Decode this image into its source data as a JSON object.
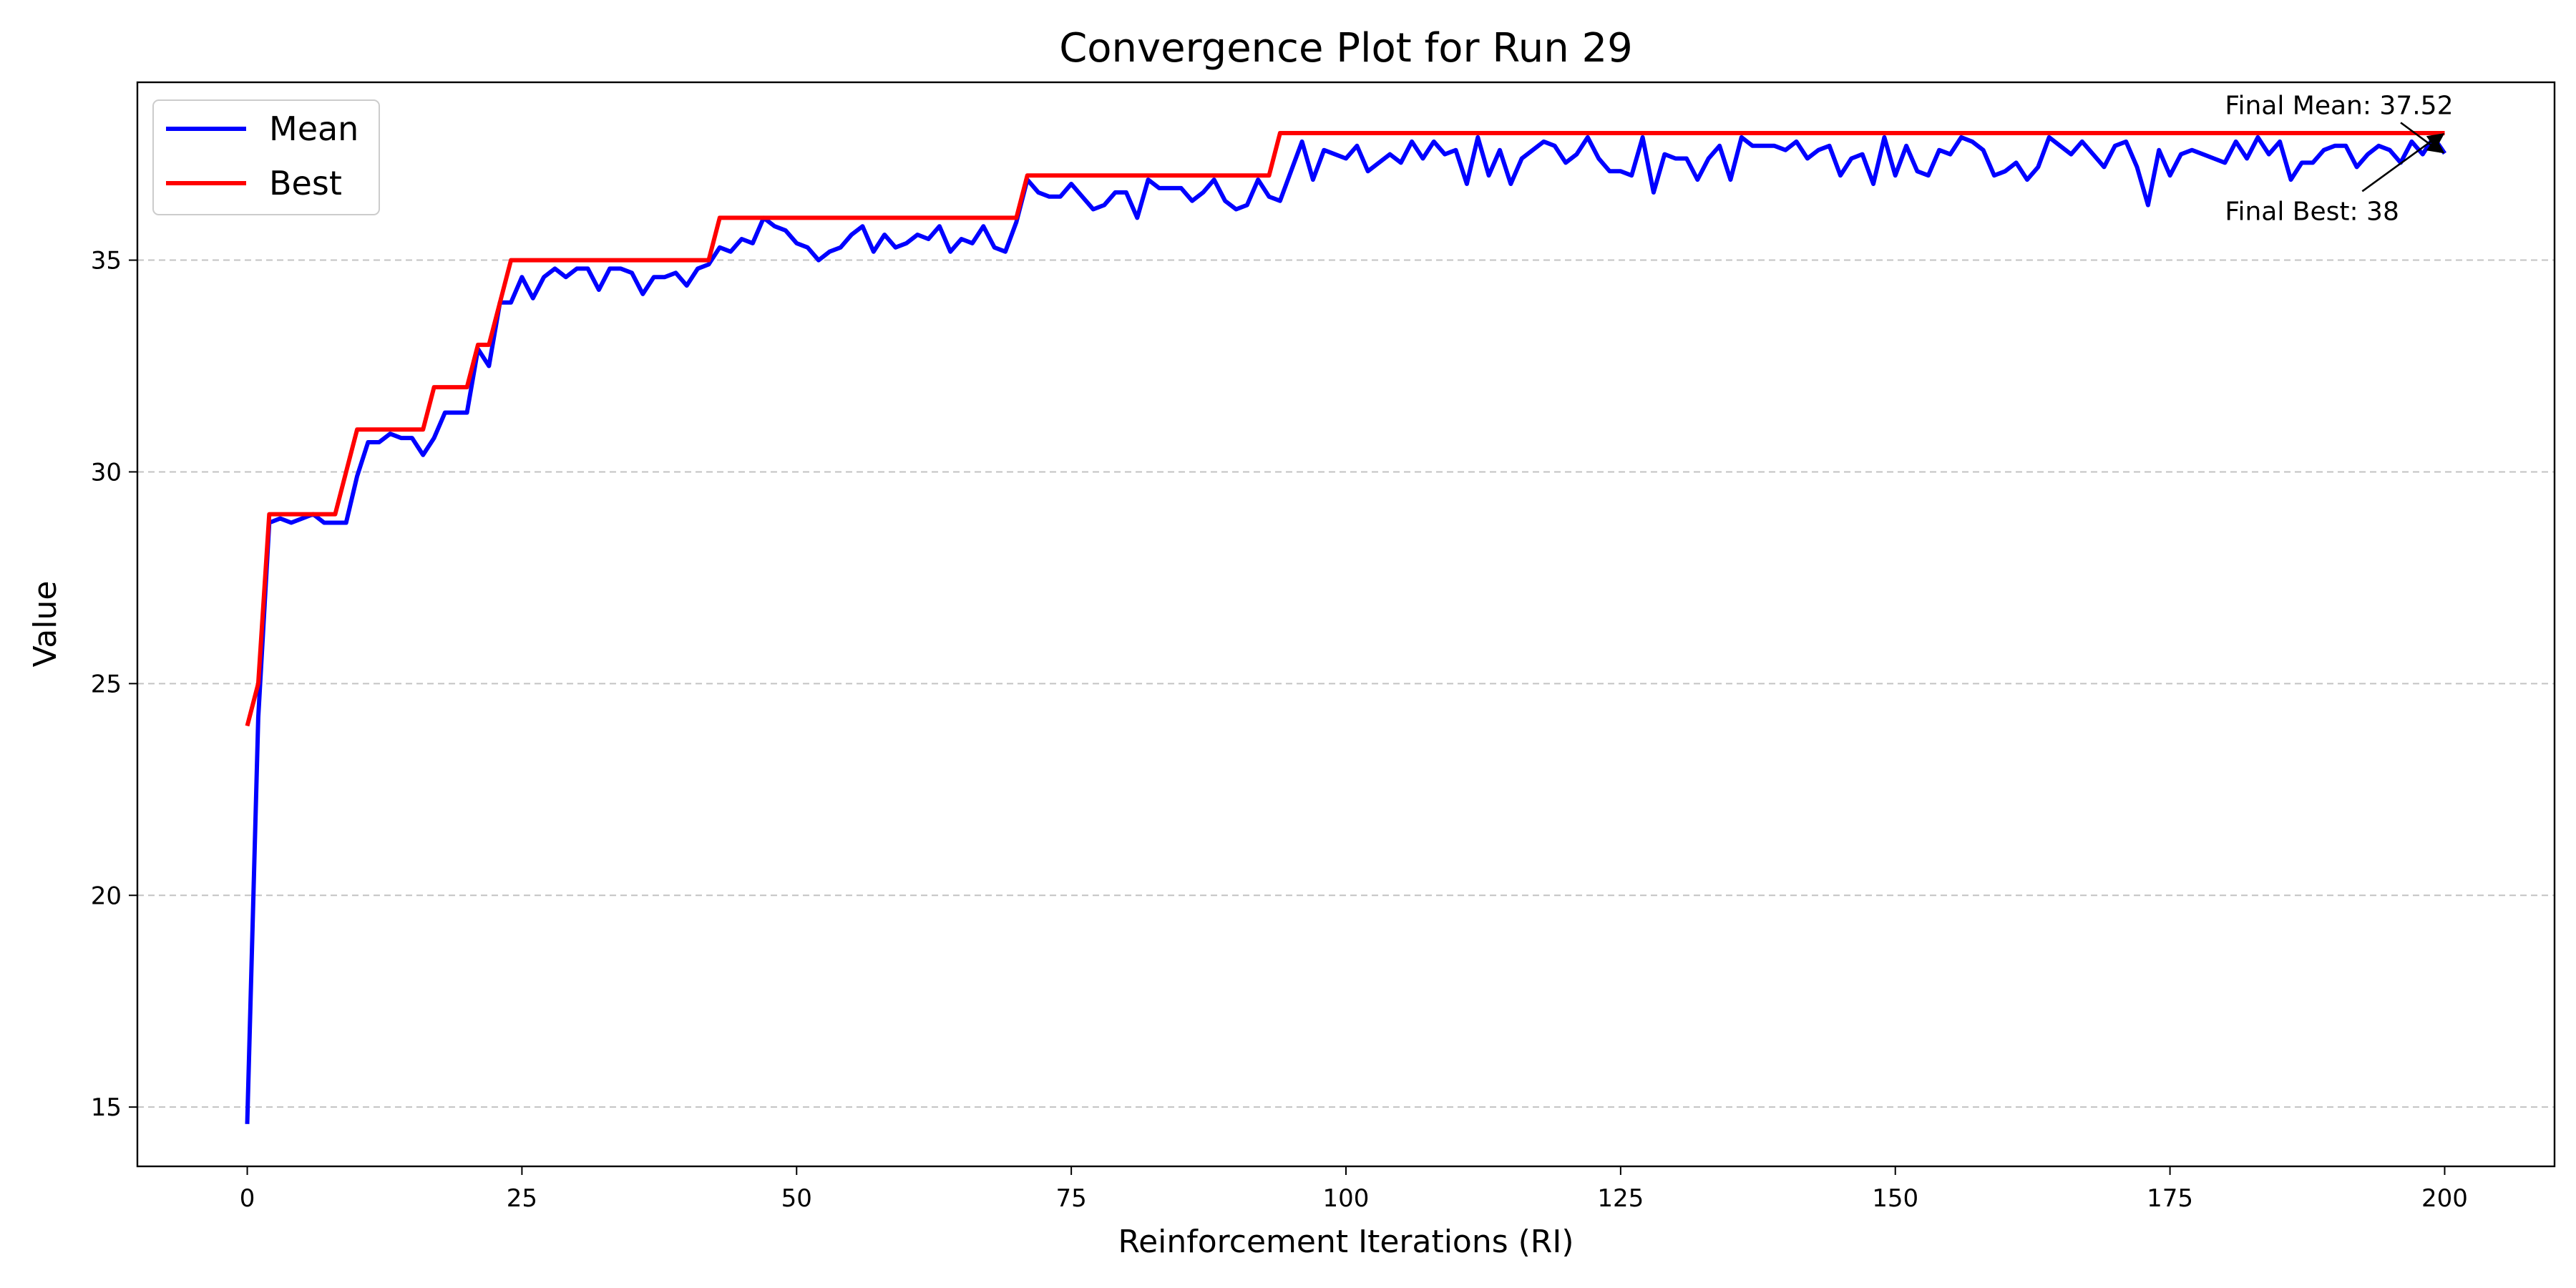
{
  "chart_data": {
    "type": "line",
    "title": "Convergence Plot for Run 29",
    "xlabel": "Reinforcement Iterations (RI)",
    "ylabel": "Value",
    "xlim": [
      -10,
      210
    ],
    "ylim": [
      13.6,
      39.2
    ],
    "x_ticks": [
      0,
      25,
      50,
      75,
      100,
      125,
      150,
      175,
      200
    ],
    "y_ticks": [
      15,
      20,
      25,
      30,
      35
    ],
    "grid": "y-dashed",
    "legend_position": "top-left",
    "series": [
      {
        "name": "Mean",
        "color": "#0000ff",
        "x": [
          0,
          1,
          2,
          3,
          4,
          5,
          6,
          7,
          8,
          9,
          10,
          11,
          12,
          13,
          14,
          15,
          16,
          17,
          18,
          19,
          20,
          21,
          22,
          23,
          24,
          25,
          26,
          27,
          28,
          29,
          30,
          31,
          32,
          33,
          34,
          35,
          36,
          37,
          38,
          39,
          40,
          41,
          42,
          43,
          44,
          45,
          46,
          47,
          48,
          49,
          50,
          51,
          52,
          53,
          54,
          55,
          56,
          57,
          58,
          59,
          60,
          61,
          62,
          63,
          64,
          65,
          66,
          67,
          68,
          69,
          70,
          71,
          72,
          73,
          74,
          75,
          76,
          77,
          78,
          79,
          80,
          81,
          82,
          83,
          84,
          85,
          86,
          87,
          88,
          89,
          90,
          91,
          92,
          93,
          94,
          95,
          96,
          97,
          98,
          99,
          100,
          101,
          102,
          103,
          104,
          105,
          106,
          107,
          108,
          109,
          110,
          111,
          112,
          113,
          114,
          115,
          116,
          117,
          118,
          119,
          120,
          121,
          122,
          123,
          124,
          125,
          126,
          127,
          128,
          129,
          130,
          131,
          132,
          133,
          134,
          135,
          136,
          137,
          138,
          139,
          140,
          141,
          142,
          143,
          144,
          145,
          146,
          147,
          148,
          149,
          150,
          151,
          152,
          153,
          154,
          155,
          156,
          157,
          158,
          159,
          160,
          161,
          162,
          163,
          164,
          165,
          166,
          167,
          168,
          169,
          170,
          171,
          172,
          173,
          174,
          175,
          176,
          177,
          178,
          179,
          180,
          181,
          182,
          183,
          184,
          185,
          186,
          187,
          188,
          189,
          190,
          191,
          192,
          193,
          194,
          195,
          196,
          197,
          198,
          199,
          200
        ],
        "y": [
          14.6,
          24.2,
          28.8,
          28.9,
          28.8,
          28.9,
          29.0,
          28.8,
          28.8,
          28.8,
          29.9,
          30.7,
          30.7,
          30.9,
          30.8,
          30.8,
          30.4,
          30.8,
          31.4,
          31.4,
          31.4,
          32.9,
          32.5,
          34.0,
          34.0,
          34.6,
          34.1,
          34.6,
          34.8,
          34.6,
          34.8,
          34.8,
          34.3,
          34.8,
          34.8,
          34.7,
          34.2,
          34.6,
          34.6,
          34.7,
          34.4,
          34.8,
          34.9,
          35.3,
          35.2,
          35.5,
          35.4,
          36.0,
          35.8,
          35.7,
          35.4,
          35.3,
          35.0,
          35.2,
          35.3,
          35.6,
          35.8,
          35.2,
          35.6,
          35.3,
          35.4,
          35.6,
          35.5,
          35.8,
          35.2,
          35.5,
          35.4,
          35.8,
          35.3,
          35.2,
          35.9,
          36.9,
          36.6,
          36.5,
          36.5,
          36.8,
          36.5,
          36.2,
          36.3,
          36.6,
          36.6,
          36.0,
          36.9,
          36.7,
          36.7,
          36.7,
          36.4,
          36.6,
          36.9,
          36.4,
          36.2,
          36.3,
          36.9,
          36.5,
          36.4,
          37.1,
          37.8,
          36.9,
          37.6,
          37.5,
          37.4,
          37.7,
          37.1,
          37.3,
          37.5,
          37.3,
          37.8,
          37.4,
          37.8,
          37.5,
          37.6,
          36.8,
          37.9,
          37.0,
          37.6,
          36.8,
          37.4,
          37.6,
          37.8,
          37.7,
          37.3,
          37.5,
          37.9,
          37.4,
          37.1,
          37.1,
          37.0,
          37.9,
          36.6,
          37.5,
          37.4,
          37.4,
          36.9,
          37.4,
          37.7,
          36.9,
          37.9,
          37.7,
          37.7,
          37.7,
          37.6,
          37.8,
          37.4,
          37.6,
          37.7,
          37.0,
          37.4,
          37.5,
          36.8,
          37.9,
          37.0,
          37.7,
          37.1,
          37.0,
          37.6,
          37.5,
          37.9,
          37.8,
          37.6,
          37.0,
          37.1,
          37.3,
          36.9,
          37.2,
          37.9,
          37.7,
          37.5,
          37.8,
          37.5,
          37.2,
          37.7,
          37.8,
          37.2,
          36.3,
          37.6,
          37.0,
          37.5,
          37.6,
          37.5,
          37.4,
          37.3,
          37.8,
          37.4,
          37.9,
          37.5,
          37.8,
          36.9,
          37.3,
          37.3,
          37.6,
          37.7,
          37.7,
          37.2,
          37.5,
          37.7,
          37.6,
          37.3,
          37.8,
          37.5,
          37.9,
          37.52
        ]
      },
      {
        "name": "Best",
        "color": "#ff0000",
        "x": [
          0,
          1,
          2,
          3,
          4,
          5,
          6,
          7,
          8,
          9,
          10,
          11,
          12,
          13,
          14,
          15,
          16,
          17,
          18,
          19,
          20,
          21,
          22,
          23,
          24,
          25,
          26,
          27,
          28,
          29,
          30,
          31,
          32,
          33,
          34,
          35,
          36,
          37,
          38,
          39,
          40,
          41,
          42,
          43,
          44,
          45,
          46,
          47,
          48,
          49,
          50,
          51,
          52,
          53,
          54,
          55,
          56,
          57,
          58,
          59,
          60,
          61,
          62,
          63,
          64,
          65,
          66,
          67,
          68,
          69,
          70,
          71,
          72,
          73,
          74,
          75,
          76,
          77,
          78,
          79,
          80,
          81,
          82,
          83,
          84,
          85,
          86,
          87,
          88,
          89,
          90,
          91,
          92,
          93,
          94,
          95,
          96,
          97,
          98,
          99,
          100,
          101,
          102,
          103,
          104,
          105,
          106,
          107,
          108,
          109,
          110,
          111,
          112,
          113,
          114,
          115,
          116,
          117,
          118,
          119,
          120,
          121,
          122,
          123,
          124,
          125,
          126,
          127,
          128,
          129,
          130,
          131,
          132,
          133,
          134,
          135,
          136,
          137,
          138,
          139,
          140,
          141,
          142,
          143,
          144,
          145,
          146,
          147,
          148,
          149,
          150,
          151,
          152,
          153,
          154,
          155,
          156,
          157,
          158,
          159,
          160,
          161,
          162,
          163,
          164,
          165,
          166,
          167,
          168,
          169,
          170,
          171,
          172,
          173,
          174,
          175,
          176,
          177,
          178,
          179,
          180,
          181,
          182,
          183,
          184,
          185,
          186,
          187,
          188,
          189,
          190,
          191,
          192,
          193,
          194,
          195,
          196,
          197,
          198,
          199,
          200
        ],
        "y": [
          24,
          25,
          29,
          29,
          29,
          29,
          29,
          29,
          29,
          30,
          31,
          31,
          31,
          31,
          31,
          31,
          31,
          32,
          32,
          32,
          32,
          33,
          33,
          34,
          35,
          35,
          35,
          35,
          35,
          35,
          35,
          35,
          35,
          35,
          35,
          35,
          35,
          35,
          35,
          35,
          35,
          35,
          35,
          36,
          36,
          36,
          36,
          36,
          36,
          36,
          36,
          36,
          36,
          36,
          36,
          36,
          36,
          36,
          36,
          36,
          36,
          36,
          36,
          36,
          36,
          36,
          36,
          36,
          36,
          36,
          36,
          37,
          37,
          37,
          37,
          37,
          37,
          37,
          37,
          37,
          37,
          37,
          37,
          37,
          37,
          37,
          37,
          37,
          37,
          37,
          37,
          37,
          37,
          37,
          38,
          38,
          38,
          38,
          38,
          38,
          38,
          38,
          38,
          38,
          38,
          38,
          38,
          38,
          38,
          38,
          38,
          38,
          38,
          38,
          38,
          38,
          38,
          38,
          38,
          38,
          38,
          38,
          38,
          38,
          38,
          38,
          38,
          38,
          38,
          38,
          38,
          38,
          38,
          38,
          38,
          38,
          38,
          38,
          38,
          38,
          38,
          38,
          38,
          38,
          38,
          38,
          38,
          38,
          38,
          38,
          38,
          38,
          38,
          38,
          38,
          38,
          38,
          38,
          38,
          38,
          38,
          38,
          38,
          38,
          38,
          38,
          38,
          38,
          38,
          38,
          38,
          38,
          38,
          38,
          38,
          38,
          38,
          38,
          38,
          38,
          38,
          38,
          38,
          38,
          38,
          38,
          38,
          38,
          38,
          38,
          38,
          38,
          38,
          38,
          38,
          38,
          38,
          38,
          38,
          38,
          38
        ]
      }
    ],
    "annotations": [
      {
        "text": "Final Mean: 37.52",
        "x": 200,
        "y": 37.52,
        "text_position": "above-left"
      },
      {
        "text": "Final Best: 38",
        "x": 200,
        "y": 38,
        "text_position": "below-left"
      }
    ]
  }
}
